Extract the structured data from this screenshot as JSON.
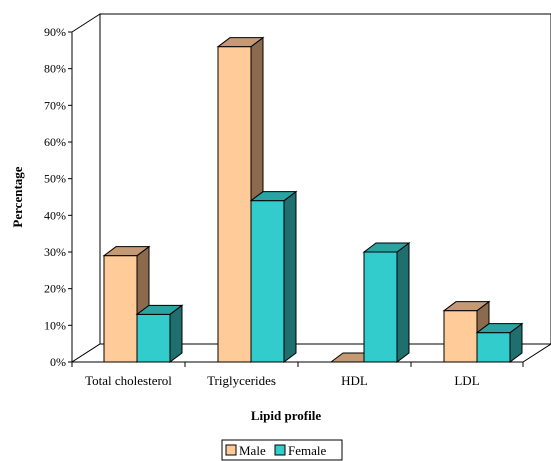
{
  "chart_data": {
    "type": "bar",
    "three_d": true,
    "categories": [
      "Total cholesterol",
      "Triglycerides",
      "HDL",
      "LDL"
    ],
    "series": [
      {
        "name": "Male",
        "values": [
          29,
          86,
          0,
          14
        ],
        "color": "#ffcc99",
        "side_color": "#8b6a4e",
        "top_color": "#c49a74"
      },
      {
        "name": "Female",
        "values": [
          13,
          44,
          30,
          8
        ],
        "color": "#33cccc",
        "side_color": "#1f6f6f",
        "top_color": "#2aa3a3"
      }
    ],
    "xlabel": "Lipid profile",
    "ylabel": "Percentage",
    "ylim": [
      0,
      90
    ],
    "yticks": [
      "0%",
      "10%",
      "20%",
      "30%",
      "40%",
      "50%",
      "60%",
      "70%",
      "80%",
      "90%"
    ],
    "grid": false,
    "legend_position": "bottom-center"
  }
}
